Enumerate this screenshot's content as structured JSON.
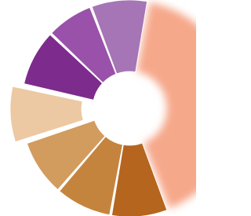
{
  "chart_data": {
    "type": "donut",
    "values": [
      145,
      30,
      30,
      30,
      30,
      30,
      25,
      30
    ],
    "colors": [
      "#f6a88a",
      "#b5651d",
      "#c5843e",
      "#d29c5e",
      "#ecc9a3",
      "#7d2b8c",
      "#9a51a9",
      "#a675b6"
    ],
    "exploded": [
      false,
      false,
      false,
      false,
      true,
      false,
      false,
      false
    ],
    "blurred": [
      true,
      false,
      false,
      false,
      false,
      false,
      false,
      false
    ]
  }
}
